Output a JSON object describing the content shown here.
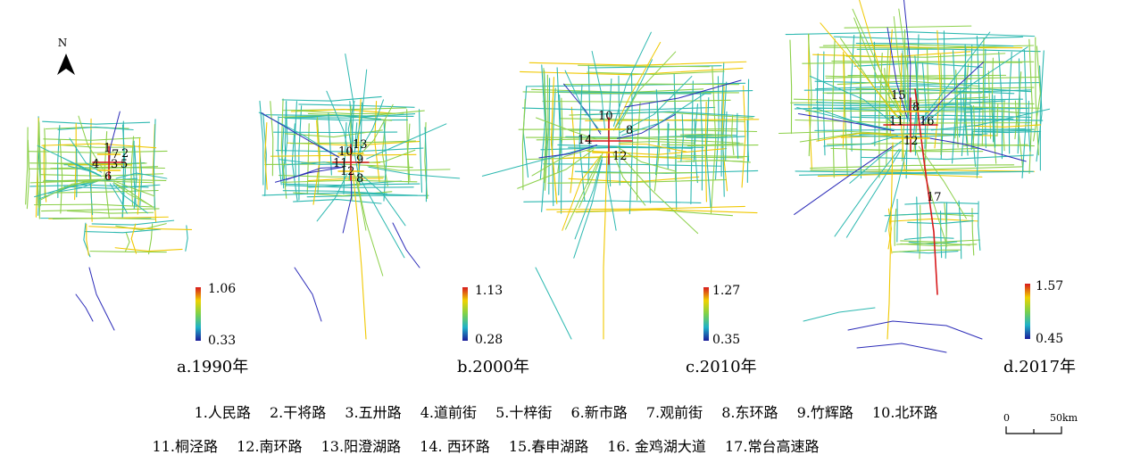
{
  "north_label": "N",
  "maps": [
    {
      "caption": "a.1990年",
      "legend_max": "1.06",
      "legend_min": "0.33",
      "labels": [
        "1",
        "7",
        "2",
        "4",
        "3",
        "5",
        "6"
      ]
    },
    {
      "caption": "b.2000年",
      "legend_max": "1.13",
      "legend_min": "0.28",
      "labels": [
        "10",
        "13",
        "9",
        "11",
        "12",
        "8"
      ]
    },
    {
      "caption": "c.2010年",
      "legend_max": "1.27",
      "legend_min": "0.35",
      "labels": [
        "10",
        "8",
        "14",
        "12"
      ]
    },
    {
      "caption": "d.2017年",
      "legend_max": "1.57",
      "legend_min": "0.45",
      "labels": [
        "15",
        "8",
        "11",
        "16",
        "12",
        "17"
      ]
    }
  ],
  "road_list_row1": [
    "1.人民路",
    "2.干将路",
    "3.五卅路",
    "4.道前街",
    "5.十梓街",
    "6.新市路",
    "7.观前街",
    "8.东环路",
    "9.竹辉路",
    "10.北环路"
  ],
  "road_list_row2": [
    "11.桐泾路",
    "12.南环路",
    "13.阳澄湖路",
    "14. 西环路",
    "15.春申湖路",
    "16. 金鸡湖大道",
    "17.常台高速路"
  ],
  "scale": {
    "start": "0",
    "end": "50km"
  },
  "colors": {
    "high": "#d7191c",
    "mid_high": "#f0c800",
    "mid": "#8cd04a",
    "mid_low": "#2cb8b0",
    "low": "#2b2bb8"
  }
}
